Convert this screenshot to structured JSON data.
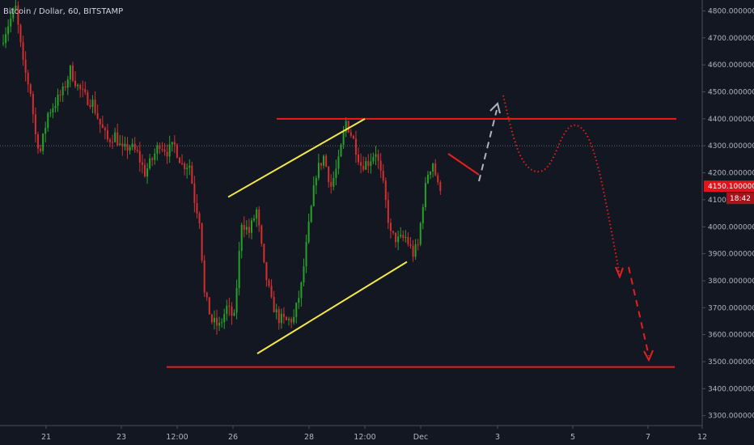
{
  "header": {
    "title": "Bitcoin / Dollar, 60, BITSTAMP"
  },
  "colors": {
    "background": "#131722",
    "up": "#26a22a",
    "down": "#d32f2f",
    "channel": "#f5e84a",
    "resistance": "#e91e1e",
    "projection_up": "#b0b3bb",
    "projection_down": "#e91e1e",
    "grid": "#2a2e39",
    "text": "#b2b5be",
    "price_badge": "#e0141b",
    "timer_badge": "#a8121a"
  },
  "price_badge": {
    "price": "4150.100000",
    "timer": "18:42"
  },
  "chart_data": {
    "type": "candlestick",
    "symbol": "Bitcoin / Dollar",
    "interval": "60",
    "exchange": "BITSTAMP",
    "ylim": [
      3250,
      4820
    ],
    "y_ticks": [
      "4800.000000",
      "4700.000000",
      "4600.000000",
      "4500.000000",
      "4400.000000",
      "4300.000000",
      "4200.000000",
      "4100.000000",
      "4000.000000",
      "3900.000000",
      "3800.000000",
      "3700.000000",
      "3600.000000",
      "3500.000000",
      "3400.000000",
      "3300.000000"
    ],
    "x_ticks": [
      "21",
      "23",
      "12:00",
      "26",
      "28",
      "12:00",
      "Dec",
      "3",
      "5",
      "7",
      "12"
    ],
    "last_price": 4150.1,
    "price_path": [
      [
        0,
        4680
      ],
      [
        3,
        4750
      ],
      [
        6,
        4810
      ],
      [
        9,
        4600
      ],
      [
        12,
        4500
      ],
      [
        14,
        4340
      ],
      [
        16,
        4280
      ],
      [
        19,
        4420
      ],
      [
        22,
        4460
      ],
      [
        25,
        4500
      ],
      [
        28,
        4580
      ],
      [
        31,
        4520
      ],
      [
        34,
        4480
      ],
      [
        37,
        4460
      ],
      [
        40,
        4380
      ],
      [
        43,
        4320
      ],
      [
        46,
        4340
      ],
      [
        49,
        4280
      ],
      [
        52,
        4300
      ],
      [
        55,
        4270
      ],
      [
        58,
        4200
      ],
      [
        61,
        4250
      ],
      [
        64,
        4310
      ],
      [
        67,
        4280
      ],
      [
        70,
        4300
      ],
      [
        73,
        4230
      ],
      [
        76,
        4230
      ],
      [
        78,
        4100
      ],
      [
        80,
        4030
      ],
      [
        82,
        3750
      ],
      [
        85,
        3650
      ],
      [
        88,
        3630
      ],
      [
        91,
        3700
      ],
      [
        94,
        3660
      ],
      [
        97,
        4020
      ],
      [
        100,
        3980
      ],
      [
        103,
        4060
      ],
      [
        106,
        3850
      ],
      [
        109,
        3720
      ],
      [
        112,
        3660
      ],
      [
        115,
        3650
      ],
      [
        118,
        3660
      ],
      [
        121,
        3780
      ],
      [
        124,
        4000
      ],
      [
        127,
        4200
      ],
      [
        130,
        4260
      ],
      [
        133,
        4150
      ],
      [
        136,
        4240
      ],
      [
        139,
        4390
      ],
      [
        142,
        4320
      ],
      [
        145,
        4230
      ],
      [
        148,
        4240
      ],
      [
        151,
        4280
      ],
      [
        154,
        4150
      ],
      [
        157,
        3970
      ],
      [
        160,
        3950
      ],
      [
        163,
        3960
      ],
      [
        166,
        3900
      ],
      [
        168,
        3930
      ],
      [
        170,
        4090
      ],
      [
        172,
        4200
      ],
      [
        174,
        4240
      ],
      [
        176,
        4150
      ]
    ],
    "annotations": {
      "support_level": 3480,
      "resistance_level": 4400,
      "channel_upper": [
        [
          95,
          4110
        ],
        [
          150,
          4400
        ]
      ],
      "channel_lower": [
        [
          105,
          3530
        ],
        [
          168,
          3870
        ]
      ],
      "short_resistance": [
        [
          185,
          4270
        ],
        [
          197,
          4190
        ]
      ],
      "projection_up": [
        [
          197,
          4190
        ],
        [
          205,
          4460
        ]
      ],
      "projection_dotted": [
        [
          208,
          4480
        ],
        [
          224,
          4200
        ],
        [
          238,
          4380
        ],
        [
          256,
          3810
        ]
      ],
      "projection_down": [
        [
          260,
          3850
        ],
        [
          267,
          3500
        ]
      ]
    }
  }
}
